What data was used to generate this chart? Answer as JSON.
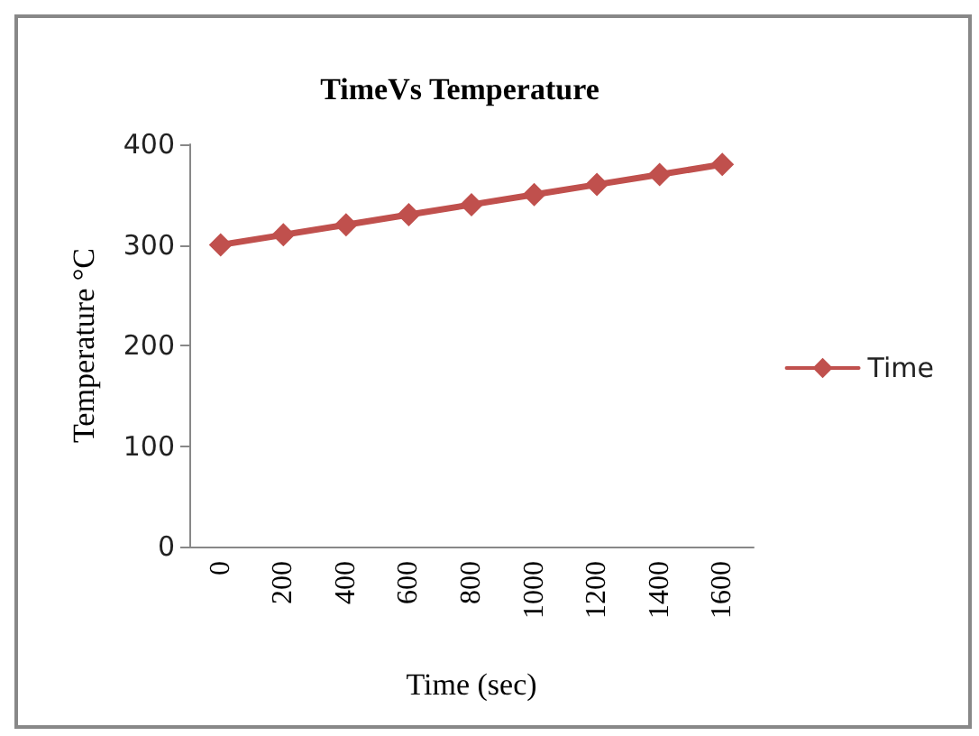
{
  "chart_data": {
    "type": "line",
    "title": "TimeVs Temperature",
    "xlabel": "Time (sec)",
    "ylabel": "Temperature °C",
    "categories": [
      "0",
      "200",
      "400",
      "600",
      "800",
      "1000",
      "1200",
      "1400",
      "1600"
    ],
    "series": [
      {
        "name": "Time",
        "color": "#c0504d",
        "values": [
          300,
          310,
          320,
          330,
          340,
          350,
          360,
          370,
          380
        ]
      }
    ],
    "ylim": [
      0,
      400
    ],
    "yticks": [
      0,
      100,
      200,
      300,
      400
    ],
    "grid": false,
    "legend": "right",
    "marker": "diamond",
    "line_style": "solid"
  }
}
